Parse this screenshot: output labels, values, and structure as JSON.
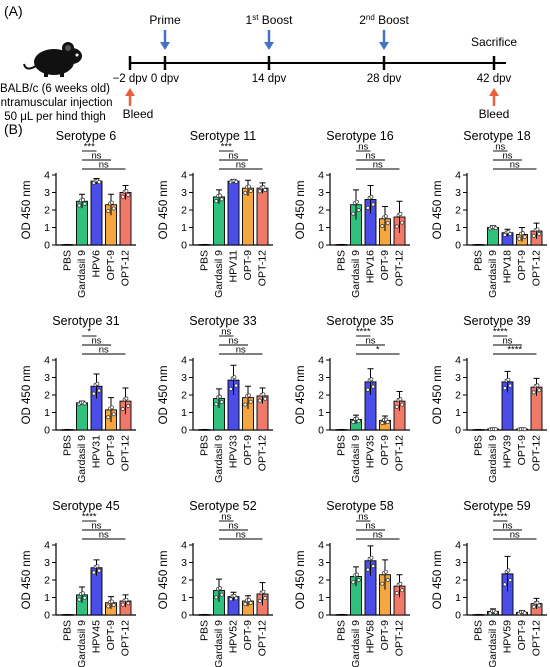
{
  "panel_a": {
    "label": "(A)",
    "mouse_text": [
      "BALB/c (6 weeks old)",
      "Intramuscular injection",
      "50 μL per hind thigh"
    ],
    "events": [
      {
        "top": "",
        "bottom": "−2 dpv",
        "bottom_event": "Bleed"
      },
      {
        "top": "Prime",
        "bottom": "0 dpv",
        "bottom_event": ""
      },
      {
        "top": "1st Boost",
        "bottom": "14 dpv",
        "bottom_event": ""
      },
      {
        "top": "2nd Boost",
        "bottom": "28 dpv",
        "bottom_event": ""
      },
      {
        "top": "Sacrifice",
        "bottom": "42 dpv",
        "bottom_event": "Bleed"
      }
    ],
    "colors": {
      "timeline": "#000000",
      "prime_arrow": "#4472c4",
      "bleed_arrow": "#e8603c"
    }
  },
  "panel_b": {
    "label": "(B)",
    "ylabel": "OD 450 nm",
    "categories_generic": [
      "PBS",
      "Gardasil 9",
      "HPV",
      "OPT-9",
      "OPT-12"
    ],
    "colors": {
      "PBS": "#ffffff",
      "Gardasil 9": "#2ec27e",
      "HPV": "#4a4de8",
      "OPT-9": "#f4a640",
      "OPT-12": "#f07a6a"
    }
  },
  "chart_data": [
    {
      "type": "bar",
      "title": "Serotype 6",
      "categories": [
        "PBS",
        "Gardasil 9",
        "HPV6",
        "OPT-9",
        "OPT-12"
      ],
      "values": [
        0.02,
        2.5,
        3.65,
        2.3,
        3.0
      ],
      "errors": [
        0.01,
        0.4,
        0.15,
        0.6,
        0.4
      ],
      "ylabel": "OD 450 nm",
      "ylim": [
        0,
        4
      ],
      "yticks": [
        0,
        1,
        2,
        3,
        4
      ],
      "comparisons": [
        {
          "from": "Gardasil 9",
          "to": "HPV6",
          "label": "***"
        },
        {
          "from": "Gardasil 9",
          "to": "OPT-9",
          "label": "ns"
        },
        {
          "from": "Gardasil 9",
          "to": "OPT-12",
          "label": "ns"
        }
      ]
    },
    {
      "type": "bar",
      "title": "Serotype 11",
      "categories": [
        "PBS",
        "Gardasil 9",
        "HPV11",
        "OPT-9",
        "OPT-12"
      ],
      "values": [
        0.02,
        2.75,
        3.65,
        3.25,
        3.25
      ],
      "errors": [
        0.01,
        0.4,
        0.1,
        0.45,
        0.3
      ],
      "ylabel": "OD 450 nm",
      "ylim": [
        0,
        4
      ],
      "yticks": [
        0,
        1,
        2,
        3,
        4
      ],
      "comparisons": [
        {
          "from": "Gardasil 9",
          "to": "HPV11",
          "label": "***"
        },
        {
          "from": "Gardasil 9",
          "to": "OPT-9",
          "label": "ns"
        },
        {
          "from": "Gardasil 9",
          "to": "OPT-12",
          "label": "ns"
        }
      ]
    },
    {
      "type": "bar",
      "title": "Serotype 16",
      "categories": [
        "PBS",
        "Gardasil 9",
        "HPV16",
        "OPT-9",
        "OPT-12"
      ],
      "values": [
        0.02,
        2.3,
        2.6,
        1.5,
        1.6
      ],
      "errors": [
        0.01,
        0.85,
        0.8,
        0.7,
        0.9
      ],
      "ylabel": "OD 450 nm",
      "ylim": [
        0,
        4
      ],
      "yticks": [
        0,
        1,
        2,
        3,
        4
      ],
      "comparisons": [
        {
          "from": "Gardasil 9",
          "to": "HPV16",
          "label": "ns"
        },
        {
          "from": "Gardasil 9",
          "to": "OPT-9",
          "label": "ns"
        },
        {
          "from": "Gardasil 9",
          "to": "OPT-12",
          "label": "ns"
        }
      ]
    },
    {
      "type": "bar",
      "title": "Serotype 18",
      "categories": [
        "PBS",
        "Gardasil 9",
        "HPV18",
        "OPT-9",
        "OPT-12"
      ],
      "values": [
        0.02,
        1.0,
        0.7,
        0.6,
        0.8
      ],
      "errors": [
        0.01,
        0.1,
        0.2,
        0.4,
        0.45
      ],
      "ylabel": "OD 450 nm",
      "ylim": [
        0,
        4
      ],
      "yticks": [
        0,
        1,
        2,
        3,
        4
      ],
      "comparisons": [
        {
          "from": "Gardasil 9",
          "to": "HPV18",
          "label": "ns"
        },
        {
          "from": "Gardasil 9",
          "to": "OPT-9",
          "label": "ns"
        },
        {
          "from": "Gardasil 9",
          "to": "OPT-12",
          "label": "ns"
        }
      ]
    },
    {
      "type": "bar",
      "title": "Serotype 31",
      "categories": [
        "PBS",
        "Gardasil 9",
        "HPV31",
        "OPT-9",
        "OPT-12"
      ],
      "values": [
        0.02,
        1.55,
        2.5,
        1.15,
        1.65
      ],
      "errors": [
        0.01,
        0.1,
        0.7,
        0.7,
        0.75
      ],
      "ylabel": "OD 450 nm",
      "ylim": [
        0,
        4
      ],
      "yticks": [
        0,
        1,
        2,
        3,
        4
      ],
      "comparisons": [
        {
          "from": "Gardasil 9",
          "to": "HPV31",
          "label": "*"
        },
        {
          "from": "Gardasil 9",
          "to": "OPT-9",
          "label": "ns"
        },
        {
          "from": "Gardasil 9",
          "to": "OPT-12",
          "label": "ns"
        }
      ]
    },
    {
      "type": "bar",
      "title": "Serotype 33",
      "categories": [
        "PBS",
        "Gardasil 9",
        "HPV33",
        "OPT-9",
        "OPT-12"
      ],
      "values": [
        0.02,
        1.8,
        2.85,
        1.85,
        1.95
      ],
      "errors": [
        0.01,
        0.55,
        0.85,
        0.65,
        0.45
      ],
      "ylabel": "OD 450 nm",
      "ylim": [
        0,
        4
      ],
      "yticks": [
        0,
        1,
        2,
        3,
        4
      ],
      "comparisons": [
        {
          "from": "Gardasil 9",
          "to": "HPV33",
          "label": "ns"
        },
        {
          "from": "Gardasil 9",
          "to": "OPT-9",
          "label": "ns"
        },
        {
          "from": "Gardasil 9",
          "to": "OPT-12",
          "label": "ns"
        }
      ]
    },
    {
      "type": "bar",
      "title": "Serotype 35",
      "categories": [
        "PBS",
        "Gardasil 9",
        "HPV35",
        "OPT-9",
        "OPT-12"
      ],
      "values": [
        0.02,
        0.6,
        2.75,
        0.55,
        1.65
      ],
      "errors": [
        0.01,
        0.25,
        0.75,
        0.25,
        0.55
      ],
      "ylabel": "OD 450 nm",
      "ylim": [
        0,
        4
      ],
      "yticks": [
        0,
        1,
        2,
        3,
        4
      ],
      "comparisons": [
        {
          "from": "Gardasil 9",
          "to": "HPV35",
          "label": "****"
        },
        {
          "from": "Gardasil 9",
          "to": "OPT-9",
          "label": "ns"
        },
        {
          "from": "Gardasil 9",
          "to": "OPT-12",
          "label": "*"
        }
      ]
    },
    {
      "type": "bar",
      "title": "Serotype 39",
      "categories": [
        "PBS",
        "Gardasil 9",
        "HPV39",
        "OPT-9",
        "OPT-12"
      ],
      "values": [
        0.02,
        0.05,
        2.75,
        0.05,
        2.45
      ],
      "errors": [
        0.01,
        0.02,
        0.6,
        0.02,
        0.5
      ],
      "ylabel": "OD 450 nm",
      "ylim": [
        0,
        4
      ],
      "yticks": [
        0,
        1,
        2,
        3,
        4
      ],
      "comparisons": [
        {
          "from": "Gardasil 9",
          "to": "HPV39",
          "label": "****"
        },
        {
          "from": "Gardasil 9",
          "to": "OPT-9",
          "label": "ns"
        },
        {
          "from": "Gardasil 9",
          "to": "OPT-12",
          "label": "****"
        }
      ]
    },
    {
      "type": "bar",
      "title": "Serotype 45",
      "categories": [
        "PBS",
        "Gardasil 9",
        "HPV45",
        "OPT-9",
        "OPT-12"
      ],
      "values": [
        0.02,
        1.15,
        2.7,
        0.7,
        0.8
      ],
      "errors": [
        0.01,
        0.45,
        0.45,
        0.35,
        0.35
      ],
      "ylabel": "OD 450 nm",
      "ylim": [
        0,
        4
      ],
      "yticks": [
        0,
        1,
        2,
        3,
        4
      ],
      "comparisons": [
        {
          "from": "Gardasil 9",
          "to": "HPV45",
          "label": "****"
        },
        {
          "from": "Gardasil 9",
          "to": "OPT-9",
          "label": "ns"
        },
        {
          "from": "Gardasil 9",
          "to": "OPT-12",
          "label": "ns"
        }
      ]
    },
    {
      "type": "bar",
      "title": "Serotype 52",
      "categories": [
        "PBS",
        "Gardasil 9",
        "HPV52",
        "OPT-9",
        "OPT-12"
      ],
      "values": [
        0.02,
        1.4,
        1.05,
        0.8,
        1.2
      ],
      "errors": [
        0.01,
        0.65,
        0.25,
        0.3,
        0.65
      ],
      "ylabel": "OD 450 nm",
      "ylim": [
        0,
        4
      ],
      "yticks": [
        0,
        1,
        2,
        3,
        4
      ],
      "comparisons": [
        {
          "from": "Gardasil 9",
          "to": "HPV52",
          "label": "ns"
        },
        {
          "from": "Gardasil 9",
          "to": "OPT-9",
          "label": "ns"
        },
        {
          "from": "Gardasil 9",
          "to": "OPT-12",
          "label": "ns"
        }
      ]
    },
    {
      "type": "bar",
      "title": "Serotype 58",
      "categories": [
        "PBS",
        "Gardasil 9",
        "HPV58",
        "OPT-9",
        "OPT-12"
      ],
      "values": [
        0.02,
        2.2,
        3.1,
        2.3,
        1.65
      ],
      "errors": [
        0.01,
        0.55,
        0.85,
        0.85,
        0.65
      ],
      "ylabel": "OD 450 nm",
      "ylim": [
        0,
        4
      ],
      "yticks": [
        0,
        1,
        2,
        3,
        4
      ],
      "comparisons": [
        {
          "from": "Gardasil 9",
          "to": "HPV58",
          "label": "ns"
        },
        {
          "from": "Gardasil 9",
          "to": "OPT-9",
          "label": "ns"
        },
        {
          "from": "Gardasil 9",
          "to": "OPT-12",
          "label": "ns"
        }
      ]
    },
    {
      "type": "bar",
      "title": "Serotype 59",
      "categories": [
        "PBS",
        "Gardasil 9",
        "HPV59",
        "OPT-9",
        "OPT-12"
      ],
      "values": [
        0.02,
        0.2,
        2.35,
        0.15,
        0.65
      ],
      "errors": [
        0.01,
        0.15,
        1.0,
        0.1,
        0.3
      ],
      "ylabel": "OD 450 nm",
      "ylim": [
        0,
        4
      ],
      "yticks": [
        0,
        1,
        2,
        3,
        4
      ],
      "comparisons": [
        {
          "from": "Gardasil 9",
          "to": "HPV59",
          "label": "****"
        },
        {
          "from": "Gardasil 9",
          "to": "OPT-9",
          "label": "ns"
        },
        {
          "from": "Gardasil 9",
          "to": "OPT-12",
          "label": "ns"
        }
      ]
    }
  ]
}
